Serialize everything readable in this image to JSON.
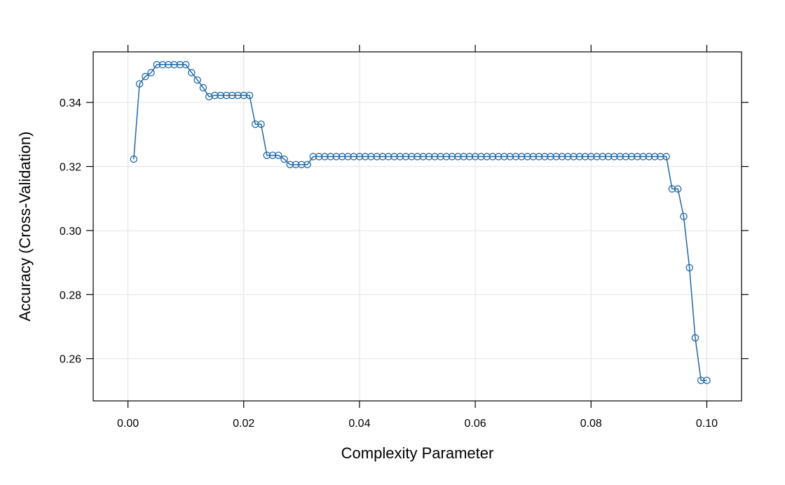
{
  "chart_data": {
    "type": "line",
    "xlabel": "Complexity Parameter",
    "ylabel": "Accuracy (Cross-Validation)",
    "xlim": [
      -0.006,
      0.106
    ],
    "ylim": [
      0.2468,
      0.3558
    ],
    "x_ticks": [
      0.0,
      0.02,
      0.04,
      0.06,
      0.08,
      0.1
    ],
    "x_tick_labels": [
      "0.00",
      "0.02",
      "0.04",
      "0.06",
      "0.08",
      "0.10"
    ],
    "y_ticks": [
      0.26,
      0.28,
      0.3,
      0.32,
      0.34
    ],
    "y_tick_labels": [
      "0.26",
      "0.28",
      "0.30",
      "0.32",
      "0.34"
    ],
    "grid": true,
    "colors": {
      "series": "#1f68a8",
      "grid": "#e6e6e6",
      "frame": "#000000"
    },
    "series": [
      {
        "x": [
          0.001,
          0.002,
          0.003,
          0.004,
          0.005,
          0.006,
          0.007,
          0.008,
          0.009,
          0.01,
          0.011,
          0.012,
          0.013,
          0.014,
          0.015,
          0.016,
          0.017,
          0.018,
          0.019,
          0.02,
          0.021,
          0.022,
          0.023,
          0.024,
          0.025,
          0.026,
          0.027,
          0.028,
          0.029,
          0.03,
          0.031,
          0.032,
          0.033,
          0.034,
          0.035,
          0.036,
          0.037,
          0.038,
          0.039,
          0.04,
          0.041,
          0.042,
          0.043,
          0.044,
          0.045,
          0.046,
          0.047,
          0.048,
          0.049,
          0.05,
          0.051,
          0.052,
          0.053,
          0.054,
          0.055,
          0.056,
          0.057,
          0.058,
          0.059,
          0.06,
          0.061,
          0.062,
          0.063,
          0.064,
          0.065,
          0.066,
          0.067,
          0.068,
          0.069,
          0.07,
          0.071,
          0.072,
          0.073,
          0.074,
          0.075,
          0.076,
          0.077,
          0.078,
          0.079,
          0.08,
          0.081,
          0.082,
          0.083,
          0.084,
          0.085,
          0.086,
          0.087,
          0.088,
          0.089,
          0.09,
          0.091,
          0.092,
          0.093,
          0.094,
          0.095,
          0.096,
          0.097,
          0.098,
          0.099,
          0.1
        ],
        "values": [
          0.3223,
          0.3458,
          0.3481,
          0.3493,
          0.3518,
          0.3518,
          0.3518,
          0.3518,
          0.3518,
          0.3518,
          0.3493,
          0.347,
          0.3446,
          0.3418,
          0.3422,
          0.3422,
          0.3422,
          0.3422,
          0.3422,
          0.3422,
          0.3422,
          0.3332,
          0.3332,
          0.3235,
          0.3235,
          0.3235,
          0.3223,
          0.3206,
          0.3206,
          0.3206,
          0.3206,
          0.3231,
          0.3231,
          0.3231,
          0.3231,
          0.3231,
          0.3231,
          0.3231,
          0.3231,
          0.3231,
          0.3231,
          0.3231,
          0.3231,
          0.3231,
          0.3231,
          0.3231,
          0.3231,
          0.3231,
          0.3231,
          0.3231,
          0.3231,
          0.3231,
          0.3231,
          0.3231,
          0.3231,
          0.3231,
          0.3231,
          0.3231,
          0.3231,
          0.3231,
          0.3231,
          0.3231,
          0.3231,
          0.3231,
          0.3231,
          0.3231,
          0.3231,
          0.3231,
          0.3231,
          0.3231,
          0.3231,
          0.3231,
          0.3231,
          0.3231,
          0.3231,
          0.3231,
          0.3231,
          0.3231,
          0.3231,
          0.3231,
          0.3231,
          0.3231,
          0.3231,
          0.3231,
          0.3231,
          0.3231,
          0.3231,
          0.3231,
          0.3231,
          0.3231,
          0.3231,
          0.3231,
          0.3231,
          0.313,
          0.313,
          0.3044,
          0.2884,
          0.2665,
          0.2532,
          0.2532
        ]
      }
    ]
  }
}
